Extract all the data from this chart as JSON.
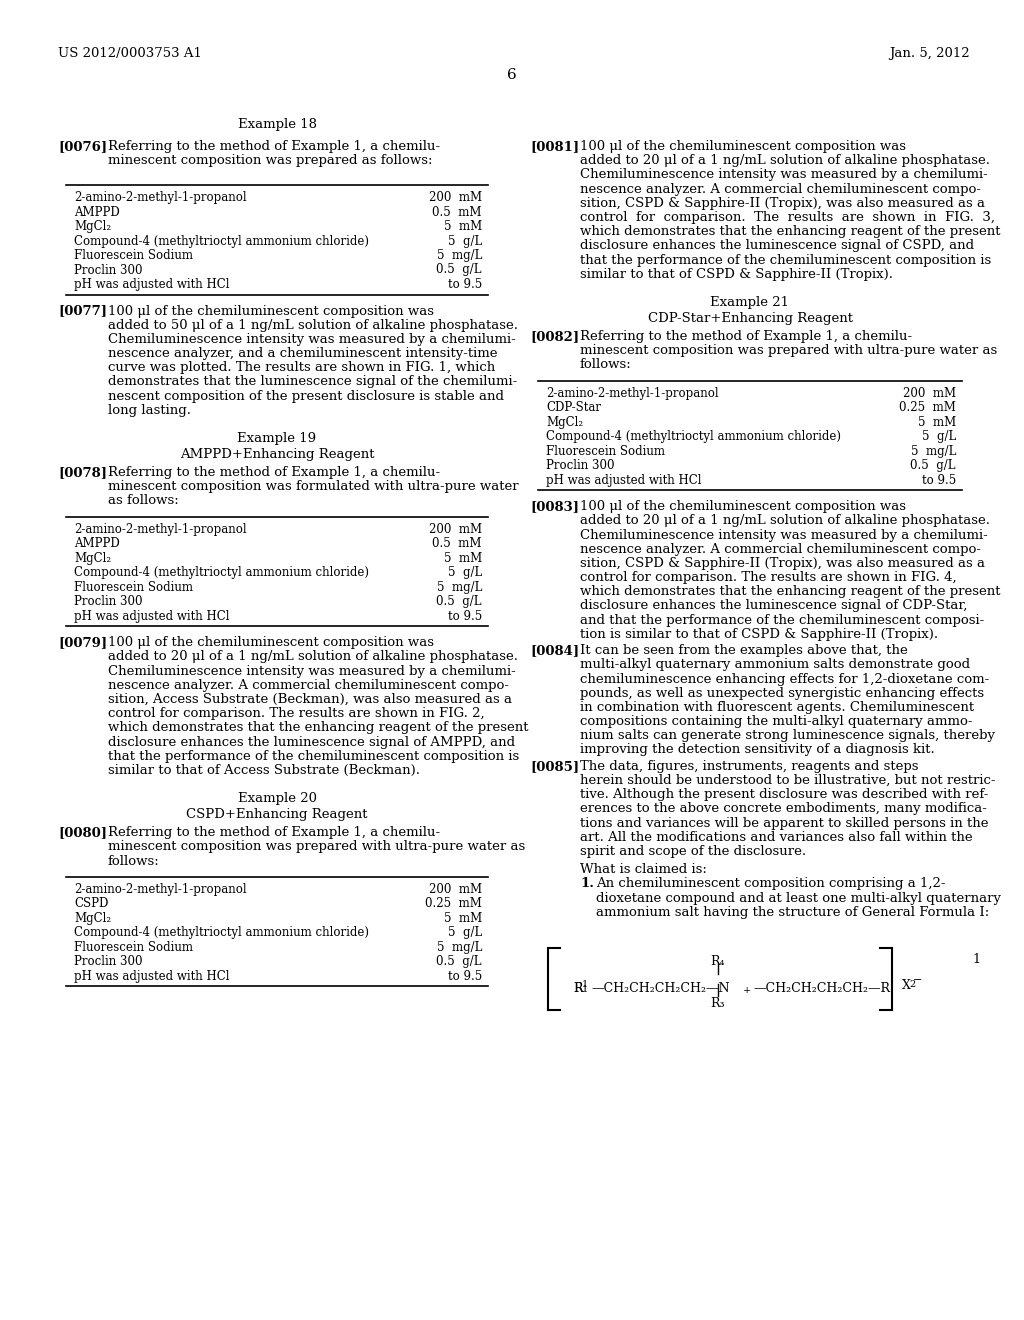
{
  "bg_color": "#ffffff",
  "header_left": "US 2012/0003753 A1",
  "header_right": "Jan. 5, 2012",
  "page_number": "6",
  "lm": 58,
  "rm": 496,
  "lm2": 530,
  "rm2": 970,
  "table18_rows": [
    [
      "2-amino-2-methyl-1-propanol",
      "200  mM"
    ],
    [
      "AMPPD",
      "0.5  mM"
    ],
    [
      "MgCl₂",
      "5  mM"
    ],
    [
      "Compound-4 (methyltrioctyl ammonium chloride)",
      "5  g/L"
    ],
    [
      "Fluorescein Sodium",
      "5  mg/L"
    ],
    [
      "Proclin 300",
      "0.5  g/L"
    ],
    [
      "pH was adjusted with HCl",
      "to 9.5"
    ]
  ],
  "table19_rows": [
    [
      "2-amino-2-methyl-1-propanol",
      "200  mM"
    ],
    [
      "AMPPD",
      "0.5  mM"
    ],
    [
      "MgCl₂",
      "5  mM"
    ],
    [
      "Compound-4 (methyltrioctyl ammonium chloride)",
      "5  g/L"
    ],
    [
      "Fluorescein Sodium",
      "5  mg/L"
    ],
    [
      "Proclin 300",
      "0.5  g/L"
    ],
    [
      "pH was adjusted with HCl",
      "to 9.5"
    ]
  ],
  "table20_rows": [
    [
      "2-amino-2-methyl-1-propanol",
      "200  mM"
    ],
    [
      "CSPD",
      "0.25  mM"
    ],
    [
      "MgCl₂",
      "5  mM"
    ],
    [
      "Compound-4 (methyltrioctyl ammonium chloride)",
      "5  g/L"
    ],
    [
      "Fluorescein Sodium",
      "5  mg/L"
    ],
    [
      "Proclin 300",
      "0.5  g/L"
    ],
    [
      "pH was adjusted with HCl",
      "to 9.5"
    ]
  ],
  "table21_rows": [
    [
      "2-amino-2-methyl-1-propanol",
      "200  mM"
    ],
    [
      "CDP-Star",
      "0.25  mM"
    ],
    [
      "MgCl₂",
      "5  mM"
    ],
    [
      "Compound-4 (methyltrioctyl ammonium chloride)",
      "5  g/L"
    ],
    [
      "Fluorescein Sodium",
      "5  mg/L"
    ],
    [
      "Proclin 300",
      "0.5  g/L"
    ],
    [
      "pH was adjusted with HCl",
      "to 9.5"
    ]
  ]
}
